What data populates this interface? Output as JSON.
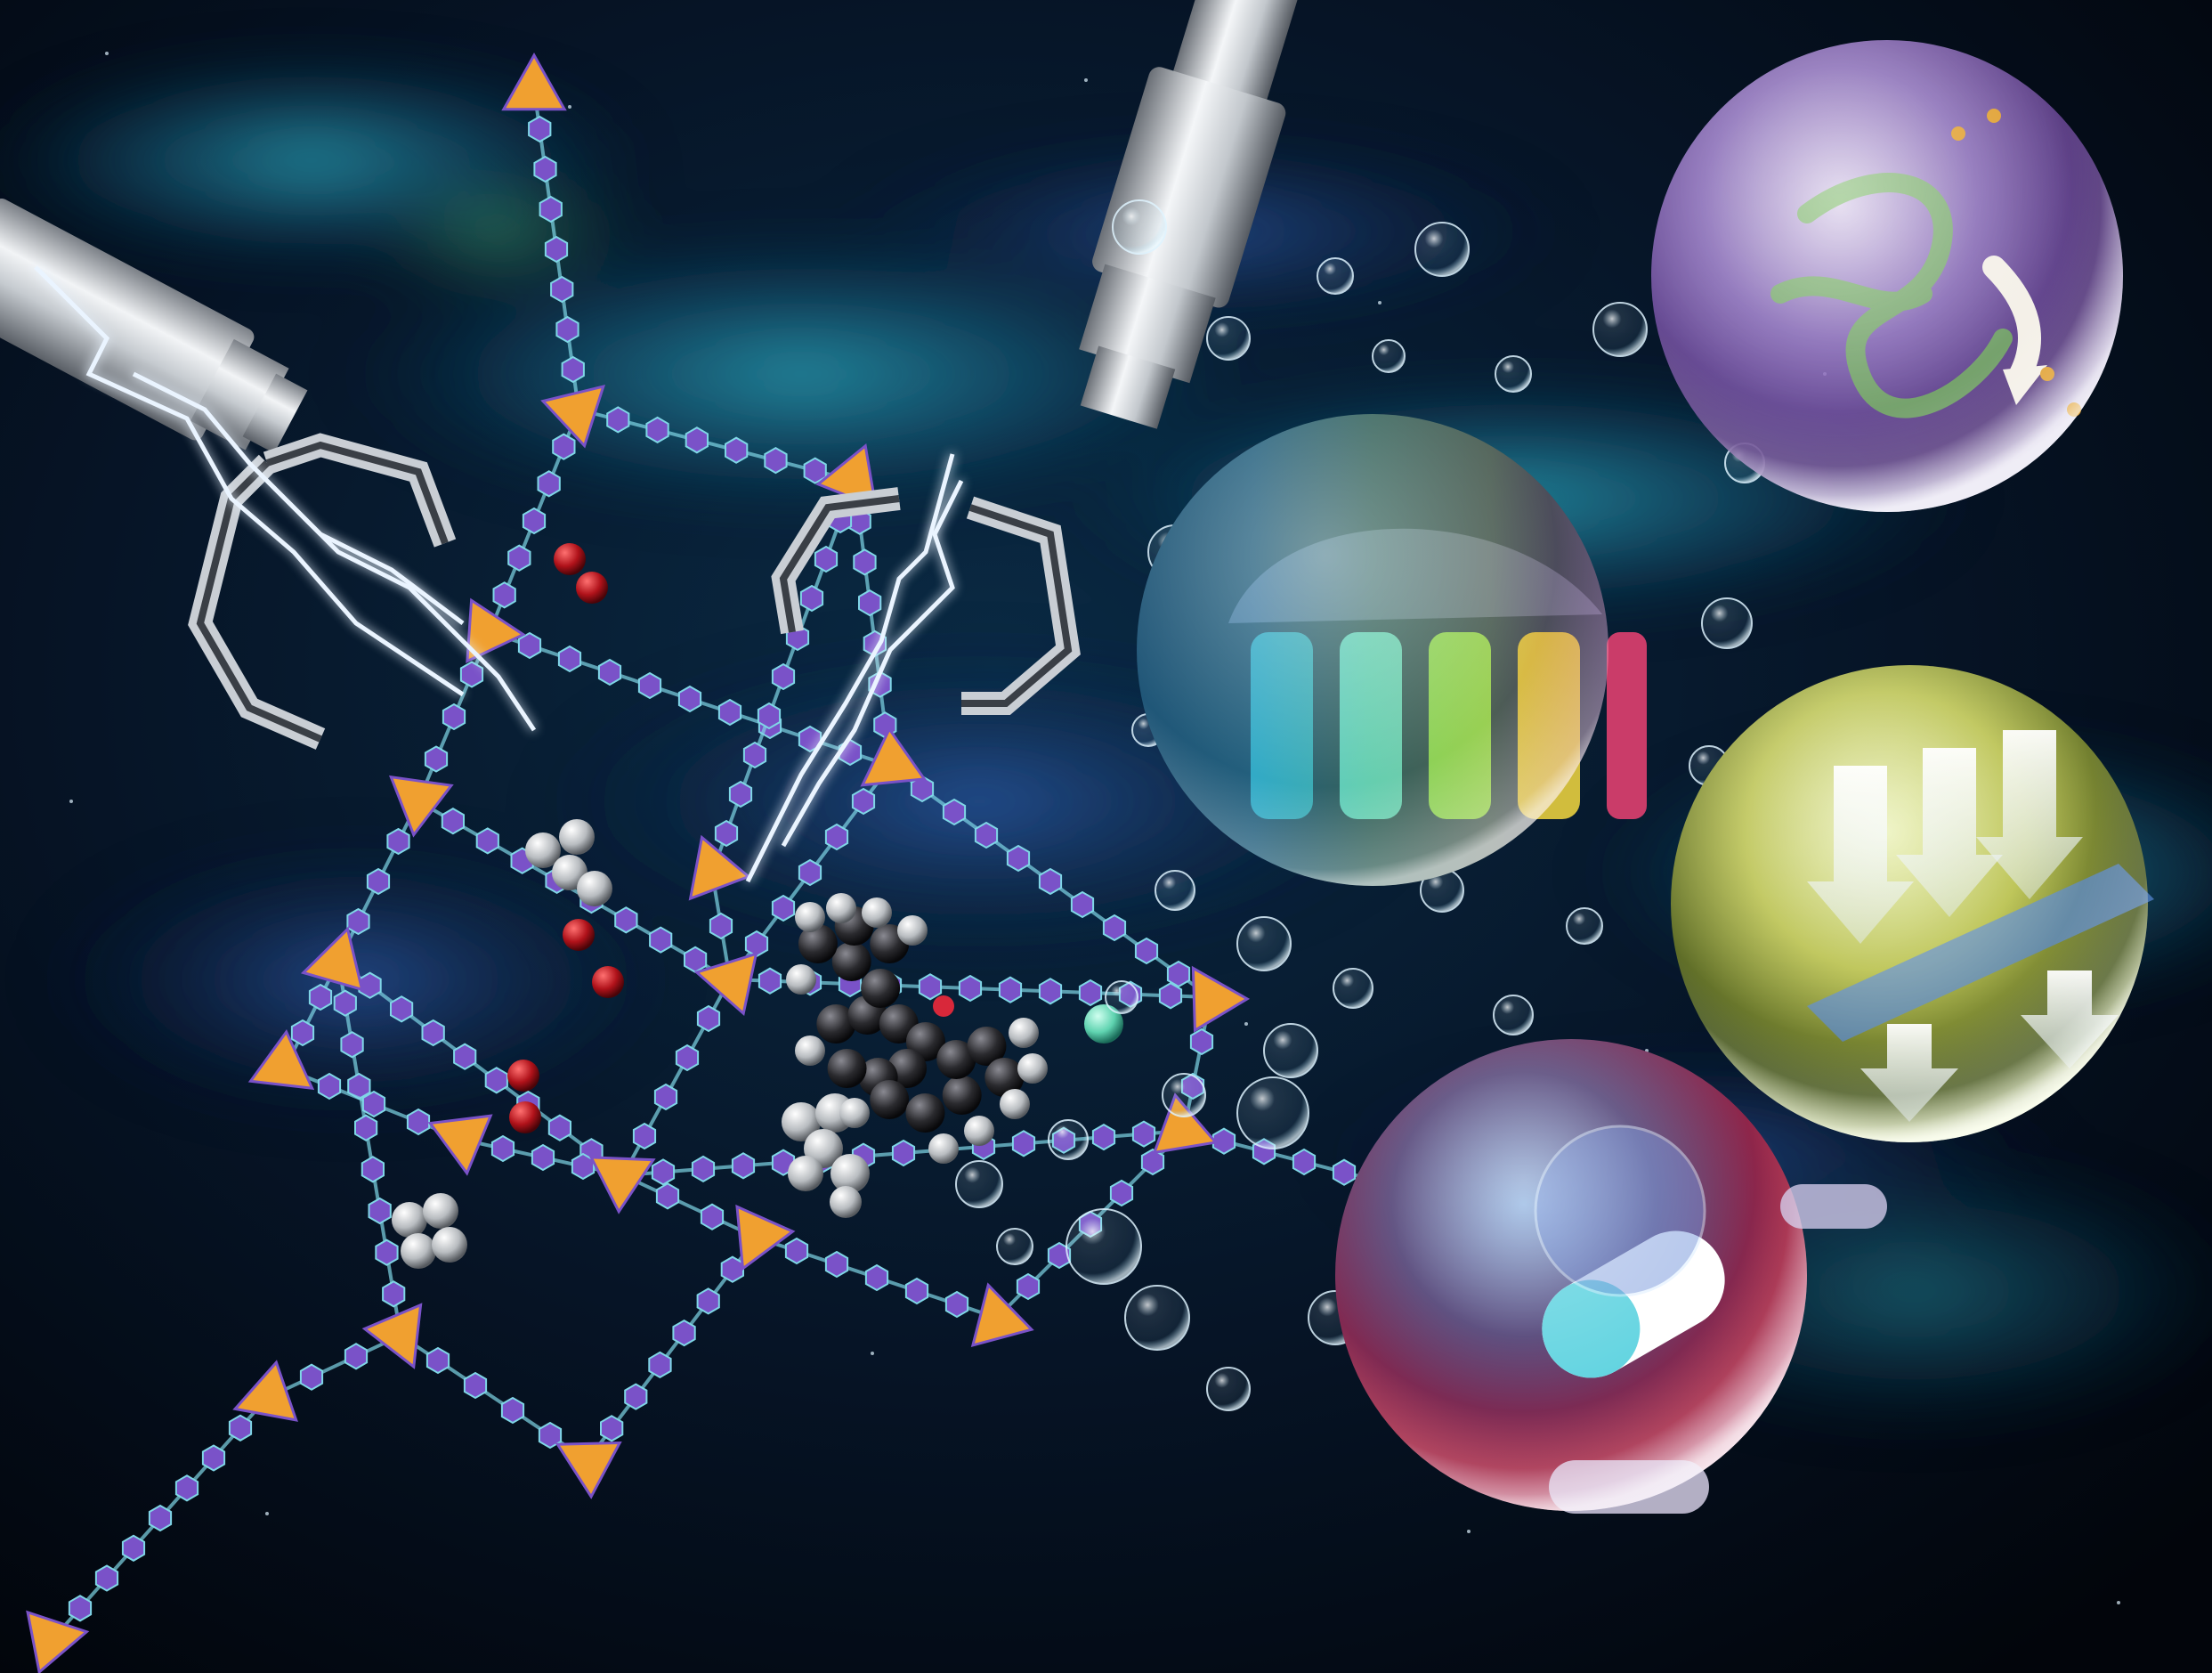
{
  "image": {
    "kind": "scientific cover illustration",
    "palette": {
      "background_deep": "#03070f",
      "nebula_teal": "#1f8fa8",
      "nebula_blue": "#1b3f8a",
      "nebula_green": "#3fae7a",
      "framework_node": "#f0a030",
      "framework_ring": "#7a52c8",
      "framework_bond": "#7fd6e6",
      "metal_light": "#e8ecef",
      "metal_dark": "#6b7078",
      "lightning": "#eaf4ff",
      "oxygen_red": "#b0121a",
      "hydrogen_gray": "#c9ccd0",
      "carbon_dark": "#2a2a2e",
      "halogen_teal": "#5fd3b0",
      "bubble_purple": "#a07ad8",
      "bubble_cyan": "#3fd0e0",
      "bubble_yellow": "#d8d040",
      "bubble_red": "#c03050"
    },
    "elements": {
      "robotic_arms": [
        "left-arm-gripper",
        "center-arm-gripper"
      ],
      "framework": "porous-network",
      "guest_molecules": [
        "o2-molecule",
        "ch4-molecule",
        "dye-molecule"
      ],
      "spheres": [
        "drug-delivery-sphere",
        "separation-sphere",
        "catalysis-sphere",
        "membrane-sphere",
        "pill-sphere"
      ]
    }
  }
}
